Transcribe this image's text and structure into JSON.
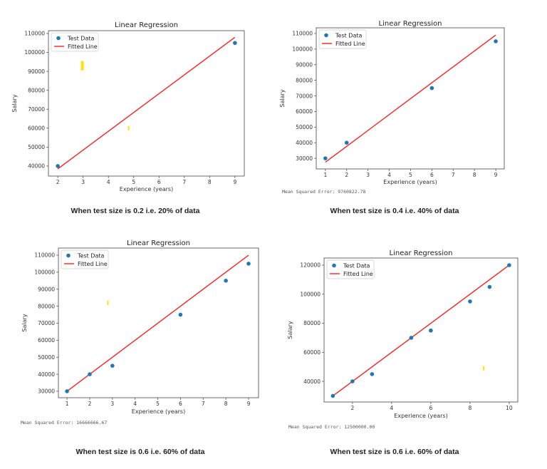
{
  "colors": {
    "points": "#1f77b4",
    "line": "#ff2020",
    "marks": "#ffe000"
  },
  "chart_data": [
    {
      "type": "scatter+line",
      "title": "Linear Regression",
      "xlabel": "Experience (years)",
      "ylabel": "Salary",
      "xlim": [
        1.63,
        9.37
      ],
      "ylim": [
        34700,
        111500
      ],
      "xticks": [
        2,
        3,
        4,
        5,
        6,
        7,
        8,
        9
      ],
      "yticks": [
        40000,
        50000,
        60000,
        70000,
        80000,
        90000,
        100000,
        110000
      ],
      "legend": {
        "position": "top-left",
        "entries": [
          "Test Data",
          "Fitted Line"
        ]
      },
      "series": [
        {
          "name": "Test Data",
          "kind": "scatter",
          "x": [
            2,
            9
          ],
          "y": [
            40000,
            105000
          ]
        },
        {
          "name": "Fitted Line",
          "kind": "line",
          "x": [
            2,
            9
          ],
          "y": [
            38500,
            108000
          ]
        }
      ],
      "highlights": [
        {
          "x": 2.97,
          "y": 93000,
          "size": "large"
        },
        {
          "x": 4.8,
          "y": 60000,
          "size": "small"
        }
      ],
      "mse_text": "",
      "caption": "When test size is 0.2 i.e. 20% of data"
    },
    {
      "type": "scatter+line",
      "title": "Linear Regression",
      "xlabel": "Experience (years)",
      "ylabel": "Salary",
      "xlim": [
        0.57,
        9.4
      ],
      "ylim": [
        23200,
        113650
      ],
      "xticks": [
        1,
        2,
        3,
        4,
        5,
        6,
        7,
        8,
        9
      ],
      "yticks": [
        30000,
        40000,
        50000,
        60000,
        70000,
        80000,
        90000,
        100000,
        110000
      ],
      "legend": {
        "position": "top-left",
        "entries": [
          "Test Data",
          "Fitted Line"
        ]
      },
      "series": [
        {
          "name": "Test Data",
          "kind": "scatter",
          "x": [
            1,
            2,
            6,
            9
          ],
          "y": [
            30000,
            40000,
            75000,
            105000
          ]
        },
        {
          "name": "Fitted Line",
          "kind": "line",
          "x": [
            1,
            9
          ],
          "y": [
            27500,
            109000
          ]
        }
      ],
      "highlights": [],
      "mse_text": "Mean Squared Error: 9760822.78",
      "caption": "When test size is 0.4 i.e. 40% of data"
    },
    {
      "type": "scatter+line",
      "title": "Linear Regression",
      "xlabel": "Experience (years)",
      "ylabel": "Salary",
      "xlim": [
        0.62,
        9.44
      ],
      "ylim": [
        26200,
        114200
      ],
      "xticks": [
        1,
        2,
        3,
        4,
        5,
        6,
        7,
        8,
        9
      ],
      "yticks": [
        30000,
        40000,
        50000,
        60000,
        70000,
        80000,
        90000,
        100000,
        110000
      ],
      "legend": {
        "position": "top-left",
        "entries": [
          "Test Data",
          "Fitted Line"
        ]
      },
      "series": [
        {
          "name": "Test Data",
          "kind": "scatter",
          "x": [
            1,
            2,
            3,
            6,
            8,
            9
          ],
          "y": [
            30000,
            40000,
            45000,
            75000,
            95000,
            105000
          ]
        },
        {
          "name": "Fitted Line",
          "kind": "line",
          "x": [
            1,
            9
          ],
          "y": [
            30000,
            110000
          ]
        }
      ],
      "highlights": [
        {
          "x": 2.8,
          "y": 82000,
          "size": "small"
        }
      ],
      "mse_text": "Mean Squared Error: 16666666.67",
      "caption": "When test size is 0.6 i.e. 60% of data"
    },
    {
      "type": "scatter+line",
      "title": "Linear Regression",
      "xlabel": "Experience (years)",
      "ylabel": "Salary",
      "xlim": [
        0.55,
        10.44
      ],
      "ylim": [
        25800,
        124900
      ],
      "xticks": [
        2,
        4,
        6,
        8,
        10
      ],
      "yticks": [
        40000,
        60000,
        80000,
        100000,
        120000
      ],
      "legend": {
        "position": "top-left",
        "entries": [
          "Test Data",
          "Fitted Line"
        ]
      },
      "series": [
        {
          "name": "Test Data",
          "kind": "scatter",
          "x": [
            1,
            2,
            3,
            5,
            6,
            8,
            9,
            10
          ],
          "y": [
            30000,
            40000,
            45000,
            70000,
            75000,
            95000,
            105000,
            120000
          ]
        },
        {
          "name": "Fitted Line",
          "kind": "line",
          "x": [
            1,
            10
          ],
          "y": [
            30000,
            120000
          ]
        }
      ],
      "highlights": [
        {
          "x": 8.7,
          "y": 49000,
          "size": "small"
        }
      ],
      "mse_text": "Mean Squared Error: 12500000.00",
      "caption": "When test size is 0.6 i.e. 60% of data"
    }
  ]
}
